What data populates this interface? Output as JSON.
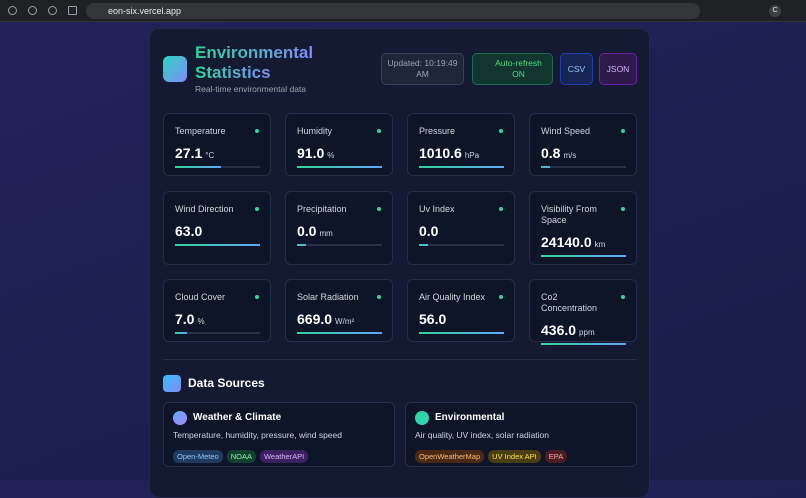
{
  "browser": {
    "url": "eon-six.vercel.app",
    "avatar": "C"
  },
  "header": {
    "title_lines": [
      "Environmental",
      "Statistics"
    ],
    "subtitle": "Real-time environmental data",
    "updated": "Updated: 10:19:49 AM",
    "auto_refresh": "Auto-refresh ON",
    "buttons": [
      "CSV",
      "JSON"
    ]
  },
  "metrics": [
    {
      "label": "Temperature",
      "value": "27.1",
      "unit": "°C",
      "level": 54
    },
    {
      "label": "Humidity",
      "value": "91.0",
      "unit": "%",
      "level": 100
    },
    {
      "label": "Pressure",
      "value": "1010.6",
      "unit": "hPa",
      "level": 100
    },
    {
      "label": "Wind Speed",
      "value": "0.8",
      "unit": "m/s",
      "level": 10
    },
    {
      "label": "Wind Direction",
      "value": "63.0",
      "unit": null,
      "level": 100
    },
    {
      "label": "Precipitation",
      "value": "0.0",
      "unit": "mm",
      "level": 10
    },
    {
      "label": "Uv Index",
      "value": "0.0",
      "unit": null,
      "level": 10
    },
    {
      "label": "Visibility From Space",
      "value": "24140.0",
      "unit": "km",
      "level": 100
    },
    {
      "label": "Cloud Cover",
      "value": "7.0",
      "unit": "%",
      "level": 14
    },
    {
      "label": "Solar Radiation",
      "value": "669.0",
      "unit": "W/m²",
      "level": 100
    },
    {
      "label": "Air Quality Index",
      "value": "56.0",
      "unit": null,
      "level": 100
    },
    {
      "label": "Co2 Concentration",
      "value": "436.0",
      "unit": "ppm",
      "level": 100
    }
  ],
  "sources": {
    "title": "Data Sources",
    "groups": [
      {
        "title": "Weather & Climate",
        "description": "Temperature, humidity, pressure, wind speed",
        "tags": [
          "Open-Meteo",
          "NOAA",
          "WeatherAPI"
        ]
      },
      {
        "title": "Environmental",
        "description": "Air quality, UV index, solar radiation",
        "tags": [
          "OpenWeatherMap",
          "UV Index API",
          "EPA"
        ]
      }
    ]
  }
}
